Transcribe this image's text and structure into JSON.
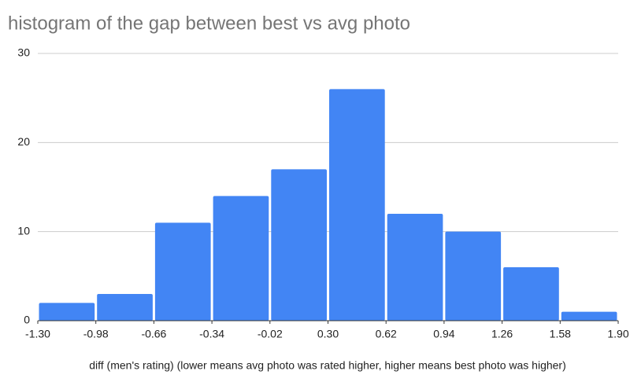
{
  "chart_data": {
    "type": "histogram",
    "title": "histogram of the gap between best vs avg photo",
    "x_label": "diff (men's rating) (lower means avg photo was rated higher, higher means best photo was higher)",
    "bins": [
      -1.3,
      -0.98,
      -0.66,
      -0.34,
      -0.02,
      0.3,
      0.62,
      0.94,
      1.26,
      1.58,
      1.9
    ],
    "values": [
      2,
      3,
      11,
      14,
      17,
      26,
      12,
      10,
      6,
      1
    ],
    "color": "#4285f4",
    "xlim": [
      -1.3,
      1.9
    ],
    "xticks": [
      {
        "value": -1.3,
        "label": "-1.30"
      },
      {
        "value": -0.98,
        "label": "-0.98"
      },
      {
        "value": -0.66,
        "label": "-0.66"
      },
      {
        "value": -0.34,
        "label": "-0.34"
      },
      {
        "value": -0.02,
        "label": "-0.02"
      },
      {
        "value": 0.3,
        "label": "0.30"
      },
      {
        "value": 0.62,
        "label": "0.62"
      },
      {
        "value": 0.94,
        "label": "0.94"
      },
      {
        "value": 1.26,
        "label": "1.26"
      },
      {
        "value": 1.58,
        "label": "1.58"
      },
      {
        "value": 1.9,
        "label": "1.90"
      }
    ],
    "ylim": [
      0,
      30
    ],
    "yticks": [
      0,
      10,
      20,
      30
    ],
    "grid": true
  }
}
